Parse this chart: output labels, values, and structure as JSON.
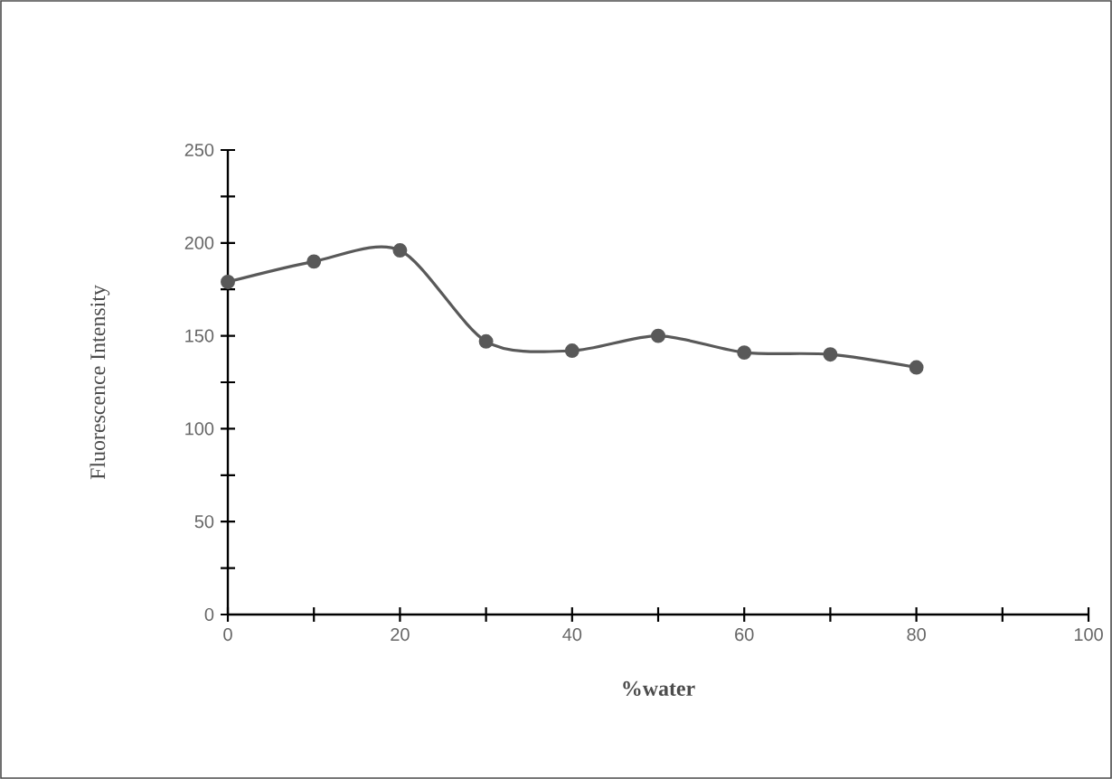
{
  "chart_data": {
    "type": "line",
    "xlabel": "%water",
    "ylabel": "Fluorescence Intensity",
    "x": [
      0,
      10,
      20,
      30,
      40,
      50,
      60,
      70,
      80
    ],
    "series": [
      {
        "color": "#595959",
        "values": [
          179,
          190,
          196,
          147,
          142,
          150,
          141,
          140,
          133
        ]
      }
    ],
    "xlim": [
      0,
      100
    ],
    "ylim": [
      0,
      250
    ],
    "xticks": [
      0,
      20,
      40,
      60,
      80,
      100
    ],
    "yticks": [
      0,
      50,
      100,
      150,
      200,
      250
    ],
    "marker": "circle",
    "line_style": "solid"
  }
}
